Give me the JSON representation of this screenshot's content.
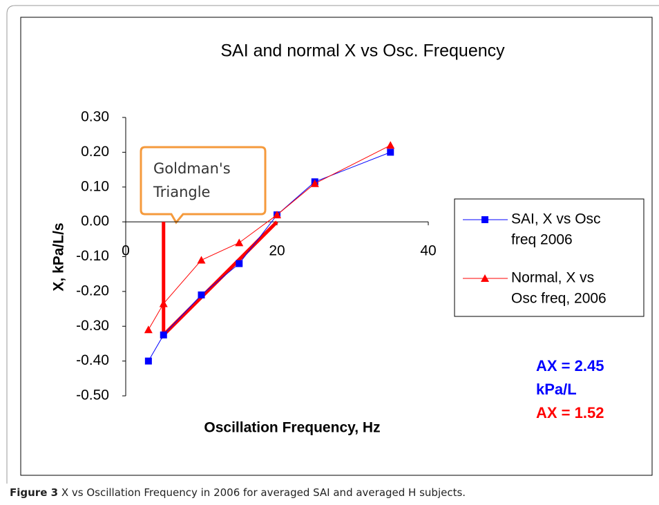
{
  "chart_data": {
    "type": "line",
    "title": "SAI and normal X vs Osc. Frequency",
    "x_label": "Oscillation  Frequency,  Hz",
    "y_label": "X, kPa/L/s",
    "xlim": [
      0,
      40
    ],
    "xticks": [
      0,
      20,
      40
    ],
    "ylim": [
      -0.5,
      0.3
    ],
    "yticks": [
      {
        "value": 0.3,
        "label": "0.30"
      },
      {
        "value": 0.2,
        "label": "0.20"
      },
      {
        "value": 0.1,
        "label": "0.10"
      },
      {
        "value": 0,
        "label": "0.00"
      },
      {
        "value": -0.1,
        "label": "-0.10"
      },
      {
        "value": -0.2,
        "label": "-0.20"
      },
      {
        "value": -0.3,
        "label": "-0.30"
      },
      {
        "value": -0.4,
        "label": "-0.40"
      },
      {
        "value": -0.5,
        "label": "-0.50"
      }
    ],
    "x": [
      3,
      5,
      10,
      15,
      20,
      25,
      35
    ],
    "series": [
      {
        "name": [
          "SAI, X vs Osc",
          "freq 2006"
        ],
        "color": "#0000ff",
        "marker": "square",
        "values": [
          -0.4,
          -0.325,
          -0.21,
          -0.12,
          0.02,
          0.115,
          0.2
        ]
      },
      {
        "name": [
          "Normal, X vs",
          "Osc freq, 2006"
        ],
        "color": "#ff0000",
        "marker": "triangle",
        "values": [
          -0.31,
          -0.235,
          -0.11,
          -0.06,
          0.02,
          0.11,
          0.22
        ]
      }
    ],
    "goldman_triangle": {
      "x": [
        5,
        5,
        20
      ],
      "y": [
        0,
        -0.325,
        0
      ],
      "color": "#ff0000"
    },
    "callout": [
      "Goldman's",
      "Triangle"
    ],
    "annotations": [
      {
        "text": "AX = 2.45",
        "color": "#0000ff"
      },
      {
        "text": "kPa/L",
        "color": "#0000ff"
      },
      {
        "text": "AX = 1.52",
        "color": "#ff0000"
      }
    ],
    "legend": "right"
  },
  "caption": {
    "label": "Figure 3",
    "text": " X vs Oscillation Frequency in 2006 for averaged SAI and averaged H subjects."
  }
}
